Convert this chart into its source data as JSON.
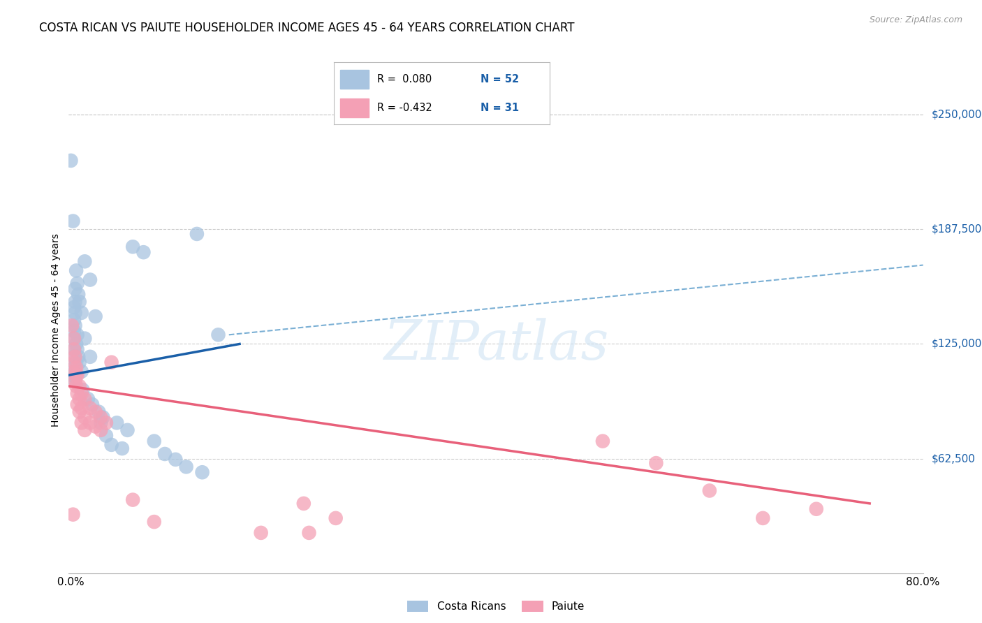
{
  "title": "COSTA RICAN VS PAIUTE HOUSEHOLDER INCOME AGES 45 - 64 YEARS CORRELATION CHART",
  "source": "Source: ZipAtlas.com",
  "ylabel": "Householder Income Ages 45 - 64 years",
  "ytick_vals": [
    0,
    62500,
    125000,
    187500,
    250000
  ],
  "ytick_labels": [
    "",
    "$62,500",
    "$125,000",
    "$187,500",
    "$250,000"
  ],
  "watermark": "ZIPatlas",
  "blue_color": "#a8c4e0",
  "pink_color": "#f4a0b5",
  "line_blue_solid_color": "#1a5fa8",
  "line_blue_dash_color": "#7aafd4",
  "line_pink_color": "#e8607a",
  "blue_scatter": [
    [
      0.2,
      225000
    ],
    [
      0.4,
      192000
    ],
    [
      0.5,
      145000
    ],
    [
      0.5,
      138000
    ],
    [
      0.5,
      132000
    ],
    [
      0.5,
      128000
    ],
    [
      0.5,
      122000
    ],
    [
      0.5,
      118000
    ],
    [
      0.5,
      112000
    ],
    [
      0.5,
      108000
    ],
    [
      0.6,
      155000
    ],
    [
      0.6,
      148000
    ],
    [
      0.6,
      142000
    ],
    [
      0.6,
      135000
    ],
    [
      0.7,
      165000
    ],
    [
      0.7,
      125000
    ],
    [
      0.7,
      115000
    ],
    [
      0.8,
      158000
    ],
    [
      0.8,
      130000
    ],
    [
      0.8,
      122000
    ],
    [
      0.9,
      152000
    ],
    [
      0.9,
      118000
    ],
    [
      1.0,
      148000
    ],
    [
      1.0,
      115000
    ],
    [
      1.2,
      142000
    ],
    [
      1.2,
      110000
    ],
    [
      1.5,
      170000
    ],
    [
      1.5,
      128000
    ],
    [
      2.0,
      160000
    ],
    [
      2.0,
      118000
    ],
    [
      2.5,
      140000
    ],
    [
      3.0,
      82000
    ],
    [
      3.5,
      75000
    ],
    [
      4.0,
      70000
    ],
    [
      5.0,
      68000
    ],
    [
      6.0,
      178000
    ],
    [
      7.0,
      175000
    ],
    [
      8.0,
      72000
    ],
    [
      9.0,
      65000
    ],
    [
      12.0,
      185000
    ],
    [
      14.0,
      130000
    ],
    [
      0.3,
      108000
    ],
    [
      0.4,
      105000
    ],
    [
      1.3,
      100000
    ],
    [
      1.8,
      95000
    ],
    [
      2.2,
      92000
    ],
    [
      2.8,
      88000
    ],
    [
      3.2,
      85000
    ],
    [
      4.5,
      82000
    ],
    [
      5.5,
      78000
    ],
    [
      10.0,
      62000
    ],
    [
      11.0,
      58000
    ],
    [
      12.5,
      55000
    ]
  ],
  "pink_scatter": [
    [
      0.3,
      135000
    ],
    [
      0.5,
      128000
    ],
    [
      0.5,
      122000
    ],
    [
      0.5,
      115000
    ],
    [
      0.6,
      118000
    ],
    [
      0.6,
      110000
    ],
    [
      0.6,
      105000
    ],
    [
      0.7,
      112000
    ],
    [
      0.7,
      108000
    ],
    [
      0.7,
      102000
    ],
    [
      0.8,
      108000
    ],
    [
      0.8,
      98000
    ],
    [
      0.8,
      92000
    ],
    [
      1.0,
      102000
    ],
    [
      1.0,
      95000
    ],
    [
      1.0,
      88000
    ],
    [
      1.2,
      98000
    ],
    [
      1.2,
      90000
    ],
    [
      1.2,
      82000
    ],
    [
      1.5,
      95000
    ],
    [
      1.5,
      85000
    ],
    [
      1.5,
      78000
    ],
    [
      2.0,
      90000
    ],
    [
      2.0,
      82000
    ],
    [
      2.5,
      88000
    ],
    [
      2.5,
      80000
    ],
    [
      3.0,
      85000
    ],
    [
      3.0,
      78000
    ],
    [
      3.5,
      82000
    ],
    [
      4.0,
      115000
    ],
    [
      6.0,
      40000
    ],
    [
      50.0,
      72000
    ],
    [
      55.0,
      60000
    ],
    [
      60.0,
      45000
    ],
    [
      65.0,
      30000
    ],
    [
      70.0,
      35000
    ],
    [
      22.0,
      38000
    ],
    [
      25.0,
      30000
    ],
    [
      0.4,
      32000
    ],
    [
      8.0,
      28000
    ],
    [
      18.0,
      22000
    ],
    [
      22.5,
      22000
    ]
  ],
  "blue_solid_line": [
    [
      0,
      108000
    ],
    [
      16,
      125000
    ]
  ],
  "blue_dash_line": [
    [
      15,
      130000
    ],
    [
      80,
      168000
    ]
  ],
  "pink_solid_line": [
    [
      0,
      102000
    ],
    [
      75,
      38000
    ]
  ],
  "xlim": [
    0,
    80
  ],
  "ylim": [
    0,
    265000
  ],
  "background_color": "#ffffff",
  "grid_color": "#cccccc"
}
